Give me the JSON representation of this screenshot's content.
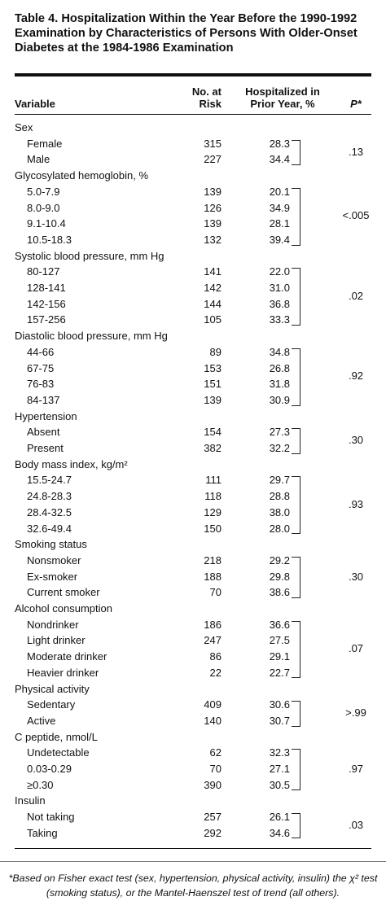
{
  "title": "Table 4. Hospitalization Within the Year Before the 1990-1992 Examination by Characteristics of Persons With Older-Onset Diabetes at the 1984-1986 Examination",
  "header": {
    "variable": "Variable",
    "n": "No. at Risk",
    "pct": "Hospitalized in Prior Year, %",
    "p": "P*"
  },
  "groups": [
    {
      "name": "Sex",
      "p": ".13",
      "rows": [
        {
          "label": "Female",
          "n": "315",
          "pct": "28.3"
        },
        {
          "label": "Male",
          "n": "227",
          "pct": "34.4"
        }
      ]
    },
    {
      "name": "Glycosylated hemoglobin, %",
      "p": "<.005",
      "rows": [
        {
          "label": "5.0-7.9",
          "n": "139",
          "pct": "20.1"
        },
        {
          "label": "8.0-9.0",
          "n": "126",
          "pct": "34.9"
        },
        {
          "label": "9.1-10.4",
          "n": "139",
          "pct": "28.1"
        },
        {
          "label": "10.5-18.3",
          "n": "132",
          "pct": "39.4"
        }
      ]
    },
    {
      "name": "Systolic blood pressure, mm Hg",
      "p": ".02",
      "rows": [
        {
          "label": "80-127",
          "n": "141",
          "pct": "22.0"
        },
        {
          "label": "128-141",
          "n": "142",
          "pct": "31.0"
        },
        {
          "label": "142-156",
          "n": "144",
          "pct": "36.8"
        },
        {
          "label": "157-256",
          "n": "105",
          "pct": "33.3"
        }
      ]
    },
    {
      "name": "Diastolic blood pressure, mm Hg",
      "p": ".92",
      "rows": [
        {
          "label": "44-66",
          "n": "89",
          "pct": "34.8"
        },
        {
          "label": "67-75",
          "n": "153",
          "pct": "26.8"
        },
        {
          "label": "76-83",
          "n": "151",
          "pct": "31.8"
        },
        {
          "label": "84-137",
          "n": "139",
          "pct": "30.9"
        }
      ]
    },
    {
      "name": "Hypertension",
      "p": ".30",
      "rows": [
        {
          "label": "Absent",
          "n": "154",
          "pct": "27.3"
        },
        {
          "label": "Present",
          "n": "382",
          "pct": "32.2"
        }
      ]
    },
    {
      "name": "Body mass index, kg/m²",
      "p": ".93",
      "rows": [
        {
          "label": "15.5-24.7",
          "n": "111",
          "pct": "29.7"
        },
        {
          "label": "24.8-28.3",
          "n": "118",
          "pct": "28.8"
        },
        {
          "label": "28.4-32.5",
          "n": "129",
          "pct": "38.0"
        },
        {
          "label": "32.6-49.4",
          "n": "150",
          "pct": "28.0"
        }
      ]
    },
    {
      "name": "Smoking status",
      "p": ".30",
      "rows": [
        {
          "label": "Nonsmoker",
          "n": "218",
          "pct": "29.2"
        },
        {
          "label": "Ex-smoker",
          "n": "188",
          "pct": "29.8"
        },
        {
          "label": "Current smoker",
          "n": "70",
          "pct": "38.6"
        }
      ]
    },
    {
      "name": "Alcohol consumption",
      "p": ".07",
      "rows": [
        {
          "label": "Nondrinker",
          "n": "186",
          "pct": "36.6"
        },
        {
          "label": "Light drinker",
          "n": "247",
          "pct": "27.5"
        },
        {
          "label": "Moderate drinker",
          "n": "86",
          "pct": "29.1"
        },
        {
          "label": "Heavier drinker",
          "n": "22",
          "pct": "22.7"
        }
      ]
    },
    {
      "name": "Physical activity",
      "p": ">.99",
      "rows": [
        {
          "label": "Sedentary",
          "n": "409",
          "pct": "30.6"
        },
        {
          "label": "Active",
          "n": "140",
          "pct": "30.7"
        }
      ]
    },
    {
      "name": "C peptide, nmol/L",
      "p": ".97",
      "rows": [
        {
          "label": "Undetectable",
          "n": "62",
          "pct": "32.3"
        },
        {
          "label": "0.03-0.29",
          "n": "70",
          "pct": "27.1"
        },
        {
          "label": "≥0.30",
          "n": "390",
          "pct": "30.5"
        }
      ]
    },
    {
      "name": "Insulin",
      "p": ".03",
      "rows": [
        {
          "label": "Not taking",
          "n": "257",
          "pct": "26.1"
        },
        {
          "label": "Taking",
          "n": "292",
          "pct": "34.6"
        }
      ]
    }
  ],
  "footnote": "*Based on Fisher exact test (sex, hypertension, physical activity, insulin) the χ² test (smoking status), or the Mantel-Haenszel test of trend (all others)."
}
